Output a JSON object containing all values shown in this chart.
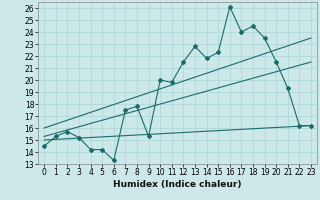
{
  "xlabel": "Humidex (Indice chaleur)",
  "bg_color": "#cce8e8",
  "line_color": "#1a6b6b",
  "x_min": -0.5,
  "x_max": 23.5,
  "y_min": 13,
  "y_max": 26.5,
  "x_ticks": [
    0,
    1,
    2,
    3,
    4,
    5,
    6,
    7,
    8,
    9,
    10,
    11,
    12,
    13,
    14,
    15,
    16,
    17,
    18,
    19,
    20,
    21,
    22,
    23
  ],
  "y_ticks": [
    13,
    14,
    15,
    16,
    17,
    18,
    19,
    20,
    21,
    22,
    23,
    24,
    25,
    26
  ],
  "main_line_x": [
    0,
    1,
    2,
    3,
    4,
    5,
    6,
    7,
    8,
    9,
    10,
    11,
    12,
    13,
    14,
    15,
    16,
    17,
    18,
    19,
    20,
    21,
    22,
    23
  ],
  "main_line_y": [
    14.5,
    15.3,
    15.7,
    15.2,
    14.2,
    14.2,
    13.3,
    17.5,
    17.8,
    15.3,
    20.0,
    19.8,
    21.5,
    22.8,
    21.8,
    22.3,
    26.1,
    24.0,
    24.5,
    23.5,
    21.5,
    19.3,
    16.2,
    16.2
  ],
  "upper_line_x": [
    0,
    23
  ],
  "upper_line_y": [
    16.0,
    23.5
  ],
  "mid_line_x": [
    0,
    23
  ],
  "mid_line_y": [
    15.3,
    21.5
  ],
  "lower_line_x": [
    0,
    23
  ],
  "lower_line_y": [
    15.0,
    16.2
  ],
  "tick_fontsize": 5.5,
  "xlabel_fontsize": 6.5,
  "grid_color": "#aad4d4",
  "spine_color": "#888888"
}
